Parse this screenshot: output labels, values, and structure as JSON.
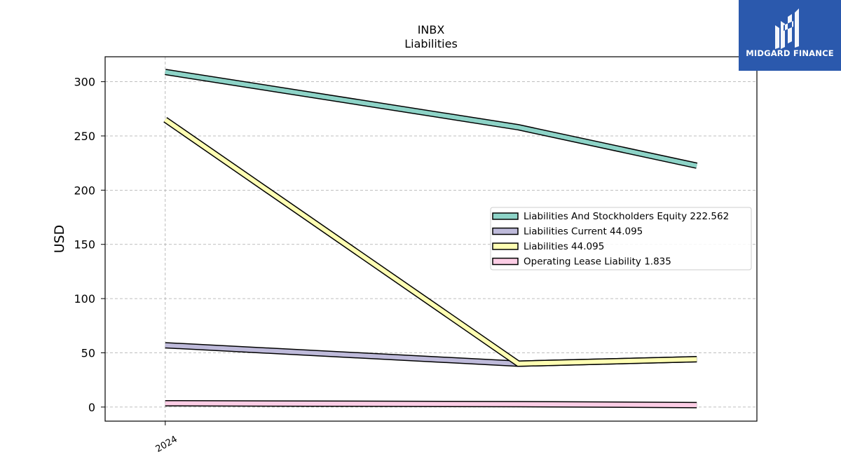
{
  "brand": {
    "name": "MIDGARD FINANCE"
  },
  "chart_data": {
    "type": "line",
    "title": "INBX",
    "subtitle": "Liabilities",
    "xlabel": "",
    "ylabel": "USD",
    "x_ticks": [
      "2024"
    ],
    "x": [
      "2024-01",
      "2024-07",
      "2024-10"
    ],
    "ylim": [
      -13,
      323
    ],
    "yticks": [
      0,
      50,
      100,
      150,
      200,
      250,
      300
    ],
    "grid": true,
    "legend_position": "center-right",
    "series": [
      {
        "name": "Liabilities And Stockholders Equity",
        "last_value": "222.562",
        "color": "#8dd3c7",
        "values": [
          309.0,
          258.0,
          222.6
        ]
      },
      {
        "name": "Liabilities Current",
        "last_value": "44.095",
        "color": "#bebada",
        "values": [
          57.0,
          40.0,
          44.1
        ]
      },
      {
        "name": "Liabilities",
        "last_value": "44.095",
        "color": "#ffffb3",
        "values": [
          265.0,
          40.0,
          44.1
        ]
      },
      {
        "name": "Operating Lease Liability",
        "last_value": "1.835",
        "color": "#fccde5",
        "values": [
          3.5,
          2.7,
          1.8
        ]
      }
    ]
  }
}
